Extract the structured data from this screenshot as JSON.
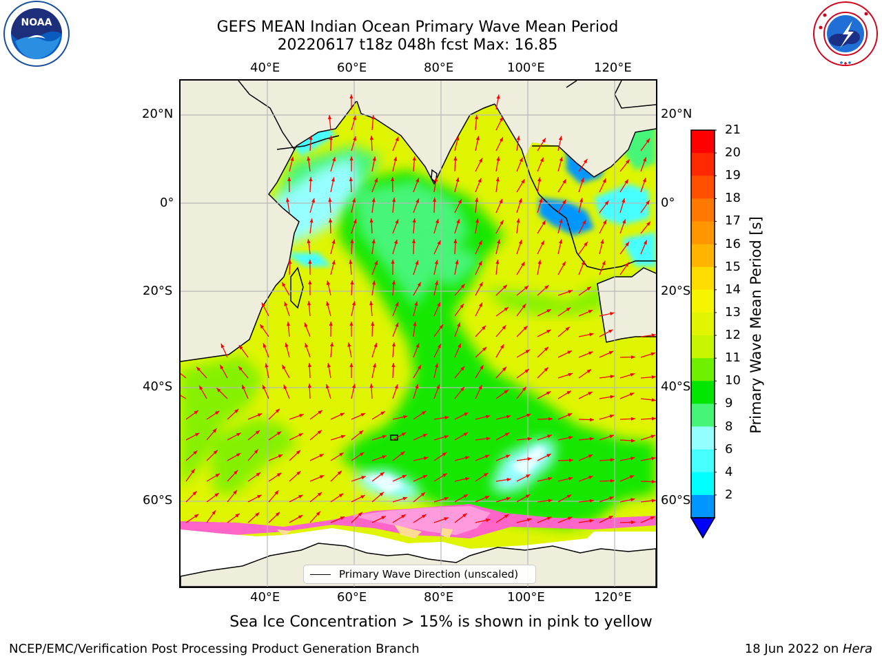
{
  "title": {
    "line1": "GEFS MEAN Indian Ocean Primary Wave Mean Period",
    "line2": "20220617 t18z 048h fcst   Max: 16.85"
  },
  "logos": {
    "left": {
      "icon": "noaa-logo",
      "text": "NOAA"
    },
    "right": {
      "icon": "national-weather-service-logo"
    }
  },
  "map": {
    "lon_labels": [
      "40°E",
      "60°E",
      "80°E",
      "100°E",
      "120°E"
    ],
    "lat_labels": [
      "20°N",
      "0°",
      "20°S",
      "40°S",
      "60°S"
    ],
    "legend": "Primary Wave Direction (unscaled)",
    "arrow_color": "#ff0000",
    "land_color": "#efeedc"
  },
  "colorbar": {
    "title": "Primary Wave Mean Period [s]",
    "ticks": [
      "21",
      "20",
      "19",
      "18",
      "17",
      "16",
      "15",
      "14",
      "13",
      "12",
      "11",
      "10",
      "9",
      "8",
      "6",
      "4",
      "2"
    ],
    "colors": [
      "#ff0000",
      "#ff2800",
      "#ff5000",
      "#ff7800",
      "#ff9600",
      "#ffb400",
      "#ffdc00",
      "#f5f500",
      "#e1f500",
      "#c8f500",
      "#6ef000",
      "#00e600",
      "#46f578",
      "#96ffff",
      "#46ffff",
      "#00ffff",
      "#0096ff"
    ],
    "underflow_color": "#0000ff"
  },
  "ice_note": "Sea Ice Concentration > 15% is shown in pink to yellow",
  "footer": {
    "left": "NCEP/EMC/Verification Post Processing Product Generation Branch",
    "date": "18 Jun 2022 on ",
    "host": "Hera"
  }
}
